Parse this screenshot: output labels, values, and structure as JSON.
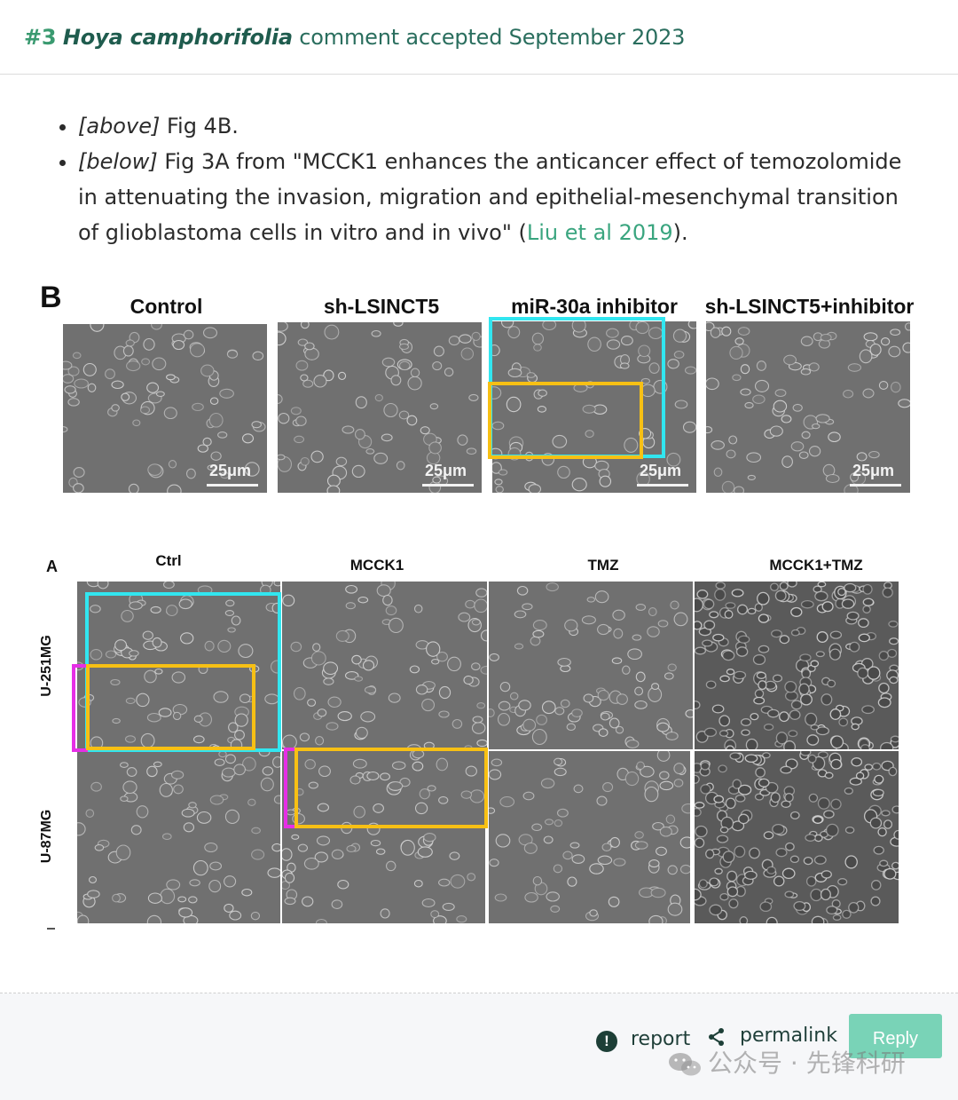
{
  "header": {
    "number": "#3",
    "species": "Hoya camphorifolia",
    "rest": "comment accepted September 2023"
  },
  "refs": {
    "above_tag": "[above]",
    "above_text": "Fig 4B.",
    "below_tag": "[below]",
    "below_text_before": "Fig 3A from \"MCCK1 enhances the anticancer effect of temozolomide in attenuating the invasion, migration and epithelial‐mesenchymal transition of glioblastoma cells in vitro and in vivo\" (",
    "below_link": "Liu et al 2019",
    "below_text_after": ")."
  },
  "figure_top": {
    "panel_letter": "B",
    "columns": [
      "Control",
      "sh-LSINCT5",
      "miR-30a inhibitor",
      "sh-LSINCT5+inhibitor"
    ],
    "scale_label": "25μm"
  },
  "figure_bottom": {
    "panel_letter": "A",
    "columns": [
      "Ctrl",
      "MCCK1",
      "TMZ",
      "MCCK1+TMZ"
    ],
    "rows": [
      "U-251MG",
      "U-87MG"
    ]
  },
  "colors": {
    "cyan_box": "#31e6f0",
    "yellow_box": "#f7c014",
    "magenta_box": "#e62ee6",
    "reply_bg": "#79d3b7",
    "link": "#3aa57f"
  },
  "footer": {
    "report_label": "report",
    "permalink_label": "permalink",
    "reply_label": "Reply",
    "report_icon": "exclamation-circle-icon",
    "share_icon": "share-icon",
    "watermark": "公众号 · 先锋科研"
  }
}
